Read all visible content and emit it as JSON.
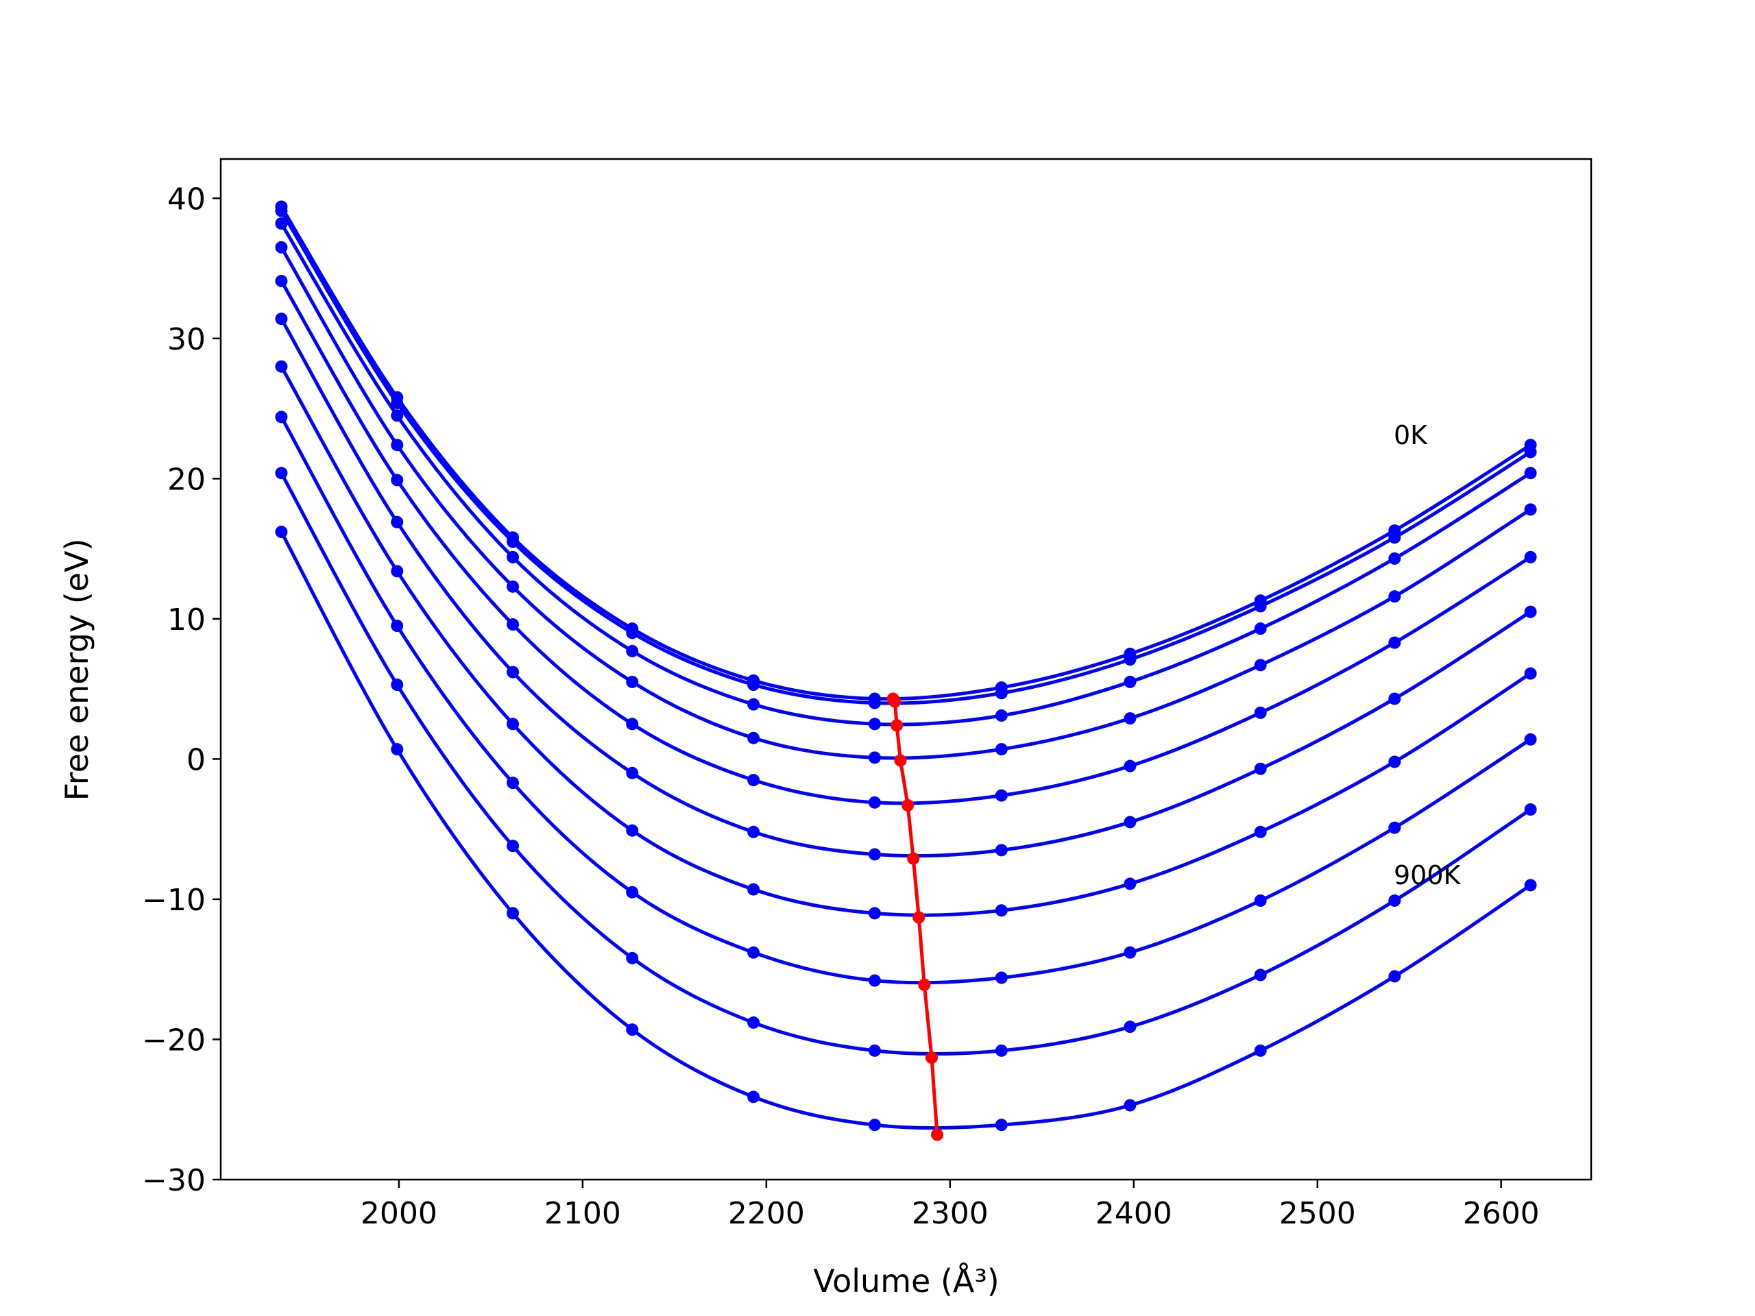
{
  "chart_data": {
    "type": "line",
    "xlabel": "Volume (Å³)",
    "ylabel": "Free energy (eV)",
    "annotations": [
      "0K",
      "900K"
    ],
    "x": [
      1936,
      1999,
      2062,
      2127,
      2193,
      2259,
      2328,
      2398,
      2469,
      2542,
      2616
    ],
    "series": [
      {
        "color": "#0000ff",
        "values": [
          39.4,
          25.8,
          15.8,
          9.3,
          5.6,
          4.3,
          5.1,
          7.5,
          11.3,
          16.3,
          22.4
        ]
      },
      {
        "color": "#0000ff",
        "values": [
          39.1,
          25.4,
          15.5,
          9.0,
          5.3,
          4.0,
          4.7,
          7.1,
          10.9,
          15.8,
          21.9
        ]
      },
      {
        "color": "#0000ff",
        "values": [
          38.2,
          24.5,
          14.4,
          7.7,
          3.9,
          2.5,
          3.1,
          5.5,
          9.3,
          14.3,
          20.4
        ]
      },
      {
        "color": "#0000ff",
        "values": [
          36.5,
          22.4,
          12.3,
          5.5,
          1.5,
          0.1,
          0.7,
          2.9,
          6.7,
          11.6,
          17.8
        ]
      },
      {
        "color": "#0000ff",
        "values": [
          34.1,
          19.9,
          9.6,
          2.5,
          -1.5,
          -3.1,
          -2.6,
          -0.5,
          3.3,
          8.3,
          14.4
        ]
      },
      {
        "color": "#0000ff",
        "values": [
          31.4,
          16.9,
          6.2,
          -1.0,
          -5.2,
          -6.8,
          -6.5,
          -4.5,
          -0.7,
          4.3,
          10.5
        ]
      },
      {
        "color": "#0000ff",
        "values": [
          28.0,
          13.4,
          2.5,
          -5.1,
          -9.3,
          -11.0,
          -10.8,
          -8.9,
          -5.2,
          -0.2,
          6.1
        ]
      },
      {
        "color": "#0000ff",
        "values": [
          24.4,
          9.5,
          -1.7,
          -9.5,
          -13.8,
          -15.8,
          -15.6,
          -13.8,
          -10.1,
          -4.9,
          1.4
        ]
      },
      {
        "color": "#0000ff",
        "values": [
          20.4,
          5.3,
          -6.2,
          -14.2,
          -18.8,
          -20.8,
          -20.8,
          -19.1,
          -15.4,
          -10.1,
          -3.6
        ]
      },
      {
        "color": "#0000ff",
        "values": [
          16.2,
          0.7,
          -11.0,
          -19.3,
          -24.1,
          -26.1,
          -26.1,
          -24.7,
          -20.8,
          -15.5,
          -9.0
        ]
      }
    ],
    "minima": {
      "color": "#ff0000",
      "x": [
        2269,
        2270,
        2271,
        2273,
        2277,
        2280,
        2283,
        2286,
        2290,
        2293
      ],
      "values": [
        4.3,
        4.1,
        2.4,
        -0.1,
        -3.3,
        -7.1,
        -11.3,
        -16.1,
        -21.3,
        -26.8
      ]
    },
    "xlim": [
      1903,
      2649
    ],
    "ylim": [
      -30,
      42.8
    ],
    "xticks": [
      2000,
      2100,
      2200,
      2300,
      2400,
      2500,
      2600
    ],
    "yticks": [
      {
        "value": -30,
        "label": "−30"
      },
      {
        "value": -20,
        "label": "−20"
      },
      {
        "value": -10,
        "label": "−10"
      },
      0,
      10,
      20,
      30,
      40
    ],
    "grid": false
  }
}
